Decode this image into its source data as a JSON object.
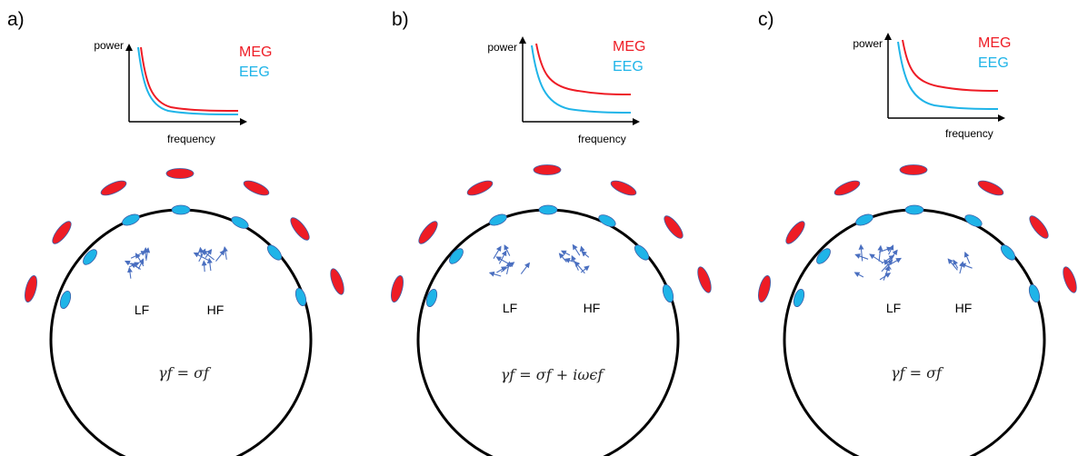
{
  "colors": {
    "meg": "#ee1c25",
    "eeg": "#1fb4e8",
    "sensor_outline": "#3a5fa8",
    "dipole": "#4a6fc0",
    "head": "#000000"
  },
  "panels": [
    {
      "letter": "a)",
      "y_axis_label": "power",
      "x_axis_label": "frequency",
      "legend": [
        "MEG",
        "EEG"
      ],
      "region_labels": [
        "LF",
        "HF"
      ],
      "formula": "γf = σf"
    },
    {
      "letter": "b)",
      "y_axis_label": "power",
      "x_axis_label": "frequency",
      "legend": [
        "MEG",
        "EEG"
      ],
      "region_labels": [
        "LF",
        "HF"
      ],
      "formula": "γf = σf + iωϵf"
    },
    {
      "letter": "c)",
      "y_axis_label": "power",
      "x_axis_label": "frequency",
      "legend": [
        "MEG",
        "EEG"
      ],
      "region_labels": [
        "LF",
        "HF"
      ],
      "formula": "γf = σf"
    }
  ]
}
